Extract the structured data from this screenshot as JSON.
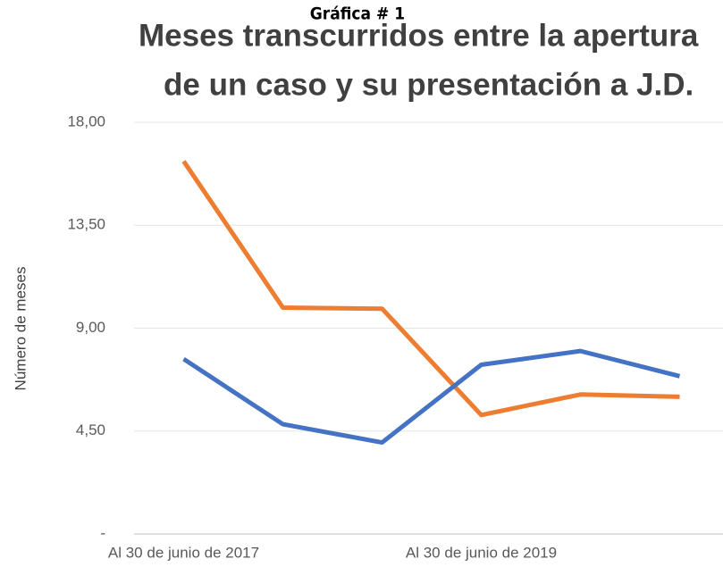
{
  "chart_data": {
    "type": "line",
    "title": "Meses transcurridos entre la apertura de un caso y su presentación a J.D.",
    "title_lines": [
      "Meses transcurridos entre la apertura",
      "de un caso y su presentación a J.D."
    ],
    "overlay_label": "Gráfica # 1",
    "y_label": "Número de meses",
    "categories": [
      "Al 30 de junio de 2017",
      null,
      null,
      "Al 30 de junio de 2019",
      null,
      null
    ],
    "series": [
      {
        "color": "#ed7d31",
        "values": [
          16.3,
          9.9,
          9.85,
          5.2,
          6.1,
          6.0
        ]
      },
      {
        "color": "#4472c4",
        "values": [
          7.65,
          4.8,
          4.0,
          7.4,
          8.0,
          6.9
        ]
      }
    ],
    "ylim": [
      0,
      18
    ],
    "yticks": [
      {
        "value": 0,
        "label": "-"
      },
      {
        "value": 4.5,
        "label": "4,50"
      },
      {
        "value": 9,
        "label": "9,00"
      },
      {
        "value": 13.5,
        "label": "13,50"
      },
      {
        "value": 18,
        "label": "18,00"
      }
    ],
    "grid": true
  }
}
